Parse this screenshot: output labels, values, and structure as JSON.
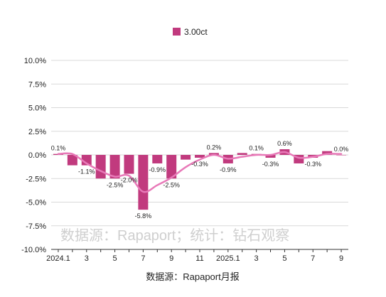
{
  "chart_data": {
    "type": "bar",
    "legend": "3.00ct",
    "colors": {
      "bar": "#C13A7E",
      "line": "#E879B8",
      "grid": "#D9D9D9",
      "axis": "#333333"
    },
    "categories": [
      "2024.1",
      "2",
      "3",
      "4",
      "5",
      "6",
      "7",
      "8",
      "9",
      "10",
      "11",
      "12",
      "2025.1",
      "2",
      "3",
      "4",
      "5",
      "6",
      "7",
      "8",
      "9"
    ],
    "x_tick_labels": [
      "2024.1",
      "",
      "3",
      "",
      "5",
      "",
      "7",
      "",
      "9",
      "",
      "11",
      "",
      "2025.1",
      "",
      "3",
      "",
      "5",
      "",
      "7",
      "",
      "9"
    ],
    "values": [
      0.1,
      -1.1,
      -1.1,
      -2.5,
      -2.5,
      -2.0,
      -5.8,
      -0.9,
      -2.5,
      -0.5,
      -0.3,
      0.2,
      -0.9,
      0.2,
      0.1,
      -0.3,
      0.6,
      -0.9,
      -0.3,
      0.4,
      0.0
    ],
    "data_labels": [
      "0.1%",
      "",
      "-1.1%",
      "",
      "-2.5%",
      "-2.0%",
      "-5.8%",
      "-0.9%",
      "-2.5%",
      "",
      "-0.3%",
      "0.2%",
      "-0.9%",
      "",
      "0.1%",
      "-0.3%",
      "0.6%",
      "",
      "-0.3%",
      "",
      "0.0%"
    ],
    "trend_line": [
      0.1,
      0.1,
      -0.9,
      -1.7,
      -2.3,
      -2.2,
      -3.9,
      -3.2,
      -2.4,
      -1.3,
      -0.5,
      0.0,
      -0.4,
      -0.2,
      0.0,
      0.0,
      0.3,
      -0.3,
      -0.2,
      0.1,
      0.1
    ],
    "ylim": [
      -10,
      10
    ],
    "y_ticks": [
      10,
      7.5,
      5,
      2.5,
      0,
      -2.5,
      -5,
      -7.5,
      -10
    ],
    "y_tick_labels": [
      "10.0%",
      "7.5%",
      "5.0%",
      "2.5%",
      "0.0%",
      "-2.5%",
      "-5.0%",
      "-7.5%",
      "-10.0%"
    ],
    "grid": true,
    "legend_position": "top-center"
  },
  "watermark": "数据源：Rapaport；统计：钻石观察",
  "source": "数据源：Rapaport月报"
}
